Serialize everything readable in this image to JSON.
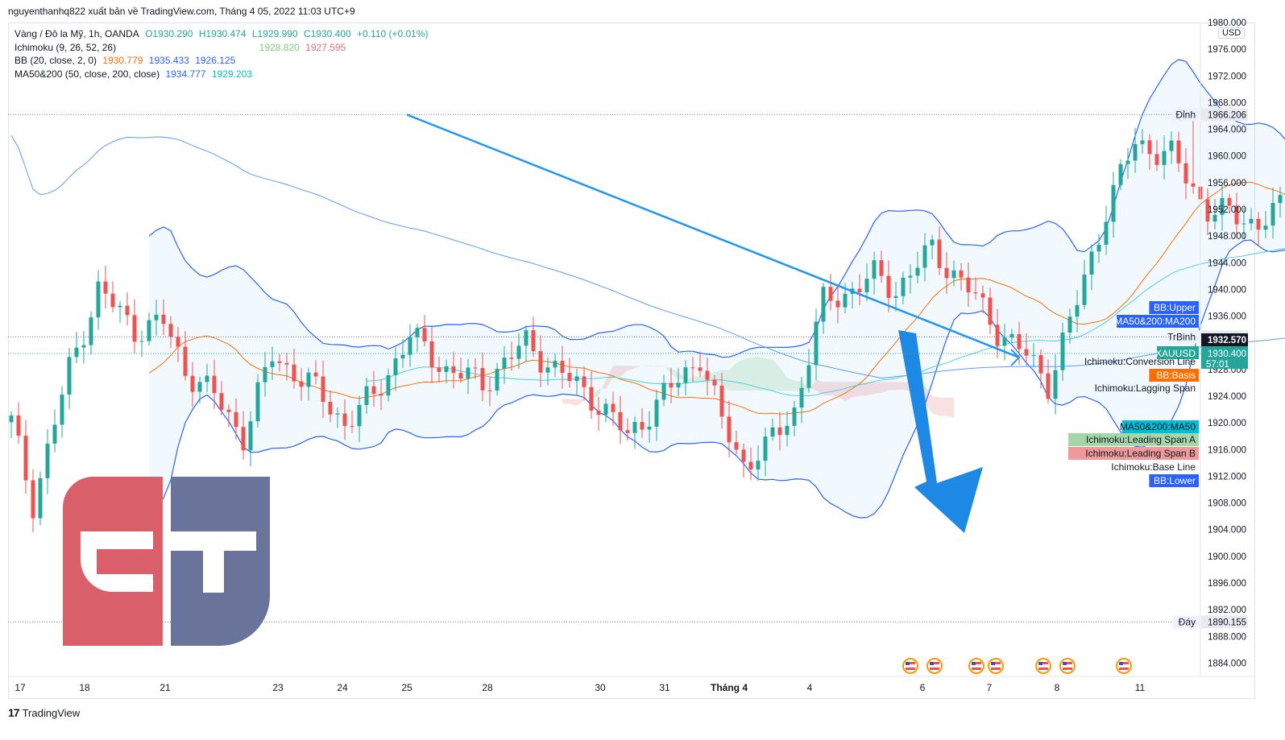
{
  "header": {
    "text": "nguyenthanhq822 xuất bản về TradingView.com, Tháng 4 05, 2022 11:03 UTC+9"
  },
  "footer": {
    "logo": "17",
    "brand": "TradingView"
  },
  "currency": "USD",
  "legend": {
    "symbol": "Vàng / Đô la Mỹ, 1h, OANDA",
    "ohlc": {
      "o": "O1930.290",
      "h": "H1930.474",
      "l": "L1929.990",
      "c": "C1930.400",
      "chg": "+0.110 (+0.01%)"
    },
    "ichimoku": {
      "label": "Ichimoku (9, 26, 52, 26)",
      "v1": "1928.820",
      "v2": "1927.595"
    },
    "bb": {
      "label": "BB (20, close, 2, 0)",
      "v1": "1930.779",
      "v2": "1935.433",
      "v3": "1926.125"
    },
    "ma": {
      "label": "MA50&200 (50, close, 200, close)",
      "v1": "1934.777",
      "v2": "1929.203"
    }
  },
  "colors": {
    "up": "#26a69a",
    "down": "#ef5350",
    "bb": "#2962ff",
    "ma50": "#00bcd4",
    "ma200": "#2962ff",
    "basis": "#ff6d00",
    "spanA": "#a5d6a7",
    "spanB": "#ef9a9a",
    "trend": "#2196f3",
    "logo_red": "#d9606a",
    "logo_blue": "#6a7399"
  },
  "chart_data": {
    "type": "candlestick",
    "symbol": "XAUUSD",
    "timeframe": "1h",
    "ylim": [
      1882,
      1980
    ],
    "y_ticks": [
      1884,
      1888,
      1892,
      1896,
      1900,
      1904,
      1908,
      1912,
      1916,
      1920,
      1924,
      1928,
      1932,
      1936,
      1940,
      1944,
      1948,
      1952,
      1956,
      1960,
      1964,
      1968,
      1972,
      1976,
      1980
    ],
    "x_labels": [
      "17",
      "18",
      "21",
      "23",
      "24",
      "25",
      "28",
      "30",
      "31",
      "Tháng 4",
      "4",
      "6",
      "7",
      "8",
      "11"
    ],
    "price_line": {
      "label": "XAUUSD",
      "value": 1930.4,
      "countdown": "57:01"
    },
    "levels": [
      {
        "label": "Đỉnh",
        "value": 1966.206
      },
      {
        "label": "TrBinh",
        "value": 1932.888
      },
      {
        "label": "Đáy",
        "value": 1890.155
      }
    ],
    "highlight_price": 1932.57,
    "right_tags": [
      {
        "label": "BB:Upper",
        "value": 1938.0
      },
      {
        "label": "MA50&200:MA200",
        "value": 1936.0
      },
      {
        "label": "Ichimoku:Conversion Line",
        "value": 1929.9
      },
      {
        "label": "BB:Basis",
        "value": 1927.7
      },
      {
        "label": "Ichimoku:Lagging Span",
        "value": 1925.7
      },
      {
        "label": "MA50&200:MA50",
        "value": 1920.0
      },
      {
        "label": "Ichimoku:Leading Span A",
        "value": 1918.0
      },
      {
        "label": "Ichimoku:Leading Span B",
        "value": 1916.0
      },
      {
        "label": "Ichimoku:Base Line",
        "value": 1914.0
      },
      {
        "label": "BB:Lower",
        "value": 1912.0
      }
    ],
    "trendline": [
      [
        25,
        1966.2
      ],
      [
        120,
        1929.8
      ]
    ],
    "arrow": {
      "from": [
        115,
        1935
      ],
      "to": [
        120.8,
        1904
      ]
    }
  }
}
